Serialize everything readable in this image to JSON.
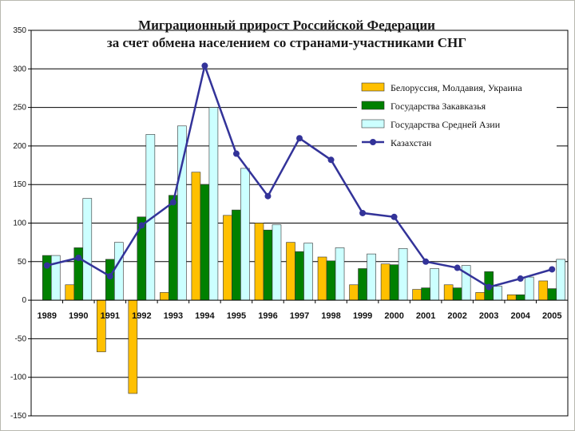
{
  "chart_data": {
    "type": "bar",
    "title_line1": "Миграционный прирост Российской Федерации",
    "title_line2": "за счет обмена населением со странами-участниками СНГ",
    "xlabel": "",
    "ylabel": "",
    "ylim": [
      -150,
      350
    ],
    "yticks": [
      -150,
      -100,
      -50,
      0,
      50,
      100,
      150,
      200,
      250,
      300,
      350
    ],
    "grid": true,
    "legend_position": "top-right",
    "categories": [
      "1989",
      "1990",
      "1991",
      "1992",
      "1993",
      "1994",
      "1995",
      "1996",
      "1997",
      "1998",
      "1999",
      "2000",
      "2001",
      "2002",
      "2003",
      "2004",
      "2005"
    ],
    "series": [
      {
        "name": "Белоруссия, Молдавия, Украина",
        "type": "bar",
        "color": "#ffc000",
        "values": [
          0,
          20,
          -67,
          -121,
          10,
          166,
          110,
          100,
          75,
          56,
          20,
          47,
          14,
          20,
          10,
          7,
          25
        ]
      },
      {
        "name": "Государства Закавказья",
        "type": "bar",
        "color": "#008000",
        "values": [
          58,
          68,
          53,
          108,
          136,
          150,
          117,
          91,
          63,
          51,
          41,
          46,
          16,
          16,
          37,
          7,
          15
        ]
      },
      {
        "name": "Государства Средней Азии",
        "type": "bar",
        "color": "#ccffff",
        "values": [
          58,
          132,
          75,
          215,
          226,
          250,
          171,
          98,
          74,
          68,
          60,
          67,
          41,
          45,
          18,
          30,
          53
        ]
      },
      {
        "name": "Казахстан",
        "type": "line",
        "color": "#333399",
        "values": [
          45,
          55,
          31,
          97,
          127,
          304,
          190,
          135,
          210,
          182,
          113,
          108,
          50,
          42,
          17,
          28,
          40
        ]
      }
    ]
  }
}
